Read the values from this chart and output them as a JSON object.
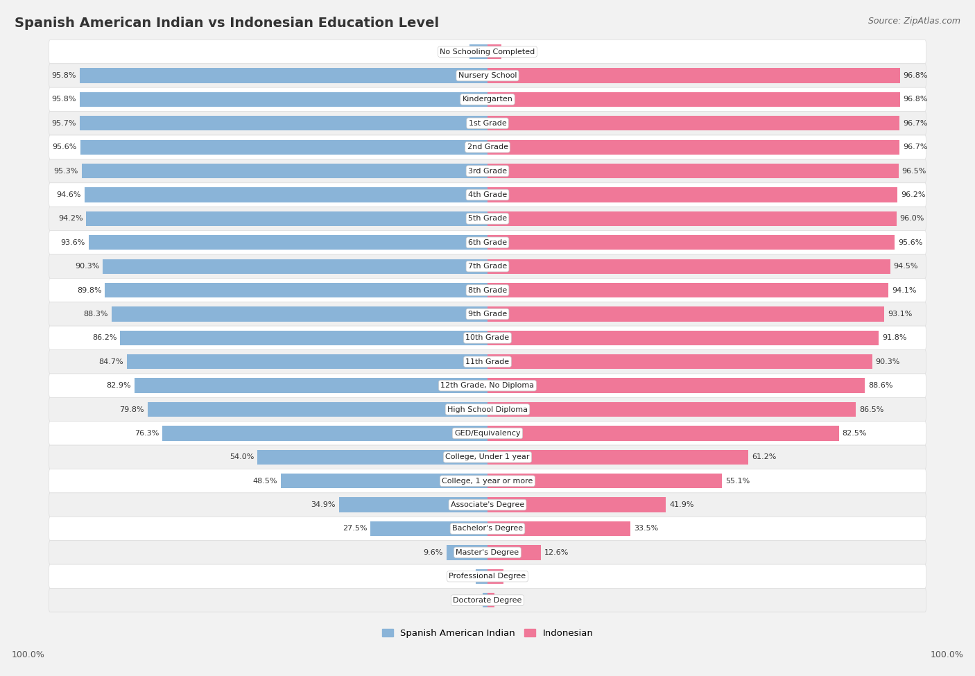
{
  "title": "Spanish American Indian vs Indonesian Education Level",
  "source": "Source: ZipAtlas.com",
  "categories": [
    "No Schooling Completed",
    "Nursery School",
    "Kindergarten",
    "1st Grade",
    "2nd Grade",
    "3rd Grade",
    "4th Grade",
    "5th Grade",
    "6th Grade",
    "7th Grade",
    "8th Grade",
    "9th Grade",
    "10th Grade",
    "11th Grade",
    "12th Grade, No Diploma",
    "High School Diploma",
    "GED/Equivalency",
    "College, Under 1 year",
    "College, 1 year or more",
    "Associate's Degree",
    "Bachelor's Degree",
    "Master's Degree",
    "Professional Degree",
    "Doctorate Degree"
  ],
  "spanish_values": [
    4.2,
    95.8,
    95.8,
    95.7,
    95.6,
    95.3,
    94.6,
    94.2,
    93.6,
    90.3,
    89.8,
    88.3,
    86.2,
    84.7,
    82.9,
    79.8,
    76.3,
    54.0,
    48.5,
    34.9,
    27.5,
    9.6,
    2.7,
    1.1
  ],
  "indonesian_values": [
    3.2,
    96.8,
    96.8,
    96.7,
    96.7,
    96.5,
    96.2,
    96.0,
    95.6,
    94.5,
    94.1,
    93.1,
    91.8,
    90.3,
    88.6,
    86.5,
    82.5,
    61.2,
    55.1,
    41.9,
    33.5,
    12.6,
    3.7,
    1.6
  ],
  "blue_color": "#8ab4d8",
  "pink_color": "#f07898",
  "background_color": "#f2f2f2",
  "row_bg_even": "#ffffff",
  "row_bg_odd": "#f0f0f0",
  "legend_blue": "Spanish American Indian",
  "legend_pink": "Indonesian",
  "axis_label_left": "100.0%",
  "axis_label_right": "100.0%",
  "title_fontsize": 14,
  "source_fontsize": 9,
  "label_fontsize": 8,
  "cat_fontsize": 8
}
